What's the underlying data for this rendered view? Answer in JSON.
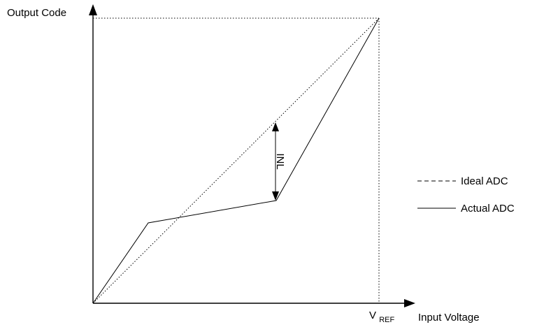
{
  "labels": {
    "y_axis": "Output Code",
    "x_axis": "Input Voltage",
    "vref_main": "V",
    "vref_sub": "REF",
    "inl": "INL"
  },
  "legend": [
    {
      "label": "Ideal ADC",
      "style": "dashed"
    },
    {
      "label": "Actual ADC",
      "style": "solid"
    }
  ],
  "colors": {
    "line": "#000000",
    "background": "#ffffff"
  }
}
